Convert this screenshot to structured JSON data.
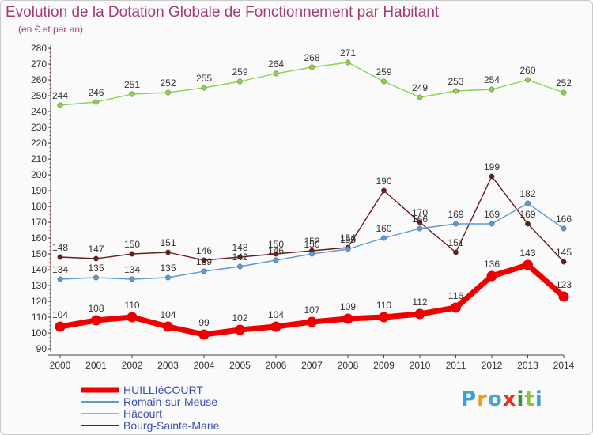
{
  "title": "Evolution de la Dotation Globale de Fonctionnement par Habitant",
  "subtitle": "(en € et par an)",
  "logo": "Proxiti",
  "chart_data": {
    "type": "line",
    "title": "Evolution de la Dotation Globale de Fonctionnement par Habitant",
    "ylabel": "(en € et par an)",
    "xlabel": "",
    "x": [
      "2000",
      "2001",
      "2002",
      "2003",
      "2004",
      "2005",
      "2006",
      "2007",
      "2008",
      "2009",
      "2010",
      "2011",
      "2012",
      "2013",
      "2014"
    ],
    "y_ticks": [
      "90",
      "100",
      "110",
      "120",
      "130",
      "140",
      "150",
      "160",
      "170",
      "180",
      "190",
      "200",
      "210",
      "220",
      "230",
      "240",
      "250",
      "260",
      "270",
      "280"
    ],
    "ylim": [
      90,
      280
    ],
    "grid": false,
    "legend_position": "bottom-left",
    "series": [
      {
        "name": "HUILLIéCOURT",
        "color": "#ee0000",
        "values": [
          104,
          108,
          110,
          104,
          99,
          102,
          104,
          107,
          109,
          110,
          112,
          116,
          136,
          143,
          123
        ]
      },
      {
        "name": "Romain-sur-Meuse",
        "color": "#5b9ad5",
        "values": [
          134,
          135,
          134,
          135,
          139,
          142,
          146,
          150,
          153,
          160,
          166,
          169,
          169,
          182,
          166
        ]
      },
      {
        "name": "Hâcourt",
        "color": "#8dd34a",
        "values": [
          244,
          246,
          251,
          252,
          255,
          259,
          264,
          268,
          271,
          259,
          249,
          253,
          254,
          260,
          252
        ]
      },
      {
        "name": "Bourg-Sainte-Marie",
        "color": "#6b1a1a",
        "values": [
          148,
          147,
          150,
          151,
          146,
          148,
          150,
          152,
          154,
          190,
          170,
          151,
          199,
          169,
          145
        ]
      }
    ],
    "data_labels": [
      [
        "104",
        "108",
        "110",
        "104",
        "99",
        "102",
        "104",
        "107",
        "109",
        "110",
        "112",
        "116",
        "136",
        "143",
        "123"
      ],
      [
        "134",
        "135",
        "134",
        "135",
        "139",
        "142",
        "146",
        "150",
        "153",
        "160",
        "166",
        "169",
        "169",
        "182",
        "166"
      ],
      [
        "244",
        "246",
        "251",
        "252",
        "255",
        "259",
        "264",
        "268",
        "271",
        "259",
        "249",
        "253",
        "254",
        "260",
        "252"
      ],
      [
        "148",
        "147",
        "150",
        "151",
        "146",
        "148",
        "150",
        "152",
        "154",
        "190",
        "170",
        "151",
        "199",
        "169",
        "145"
      ]
    ]
  }
}
